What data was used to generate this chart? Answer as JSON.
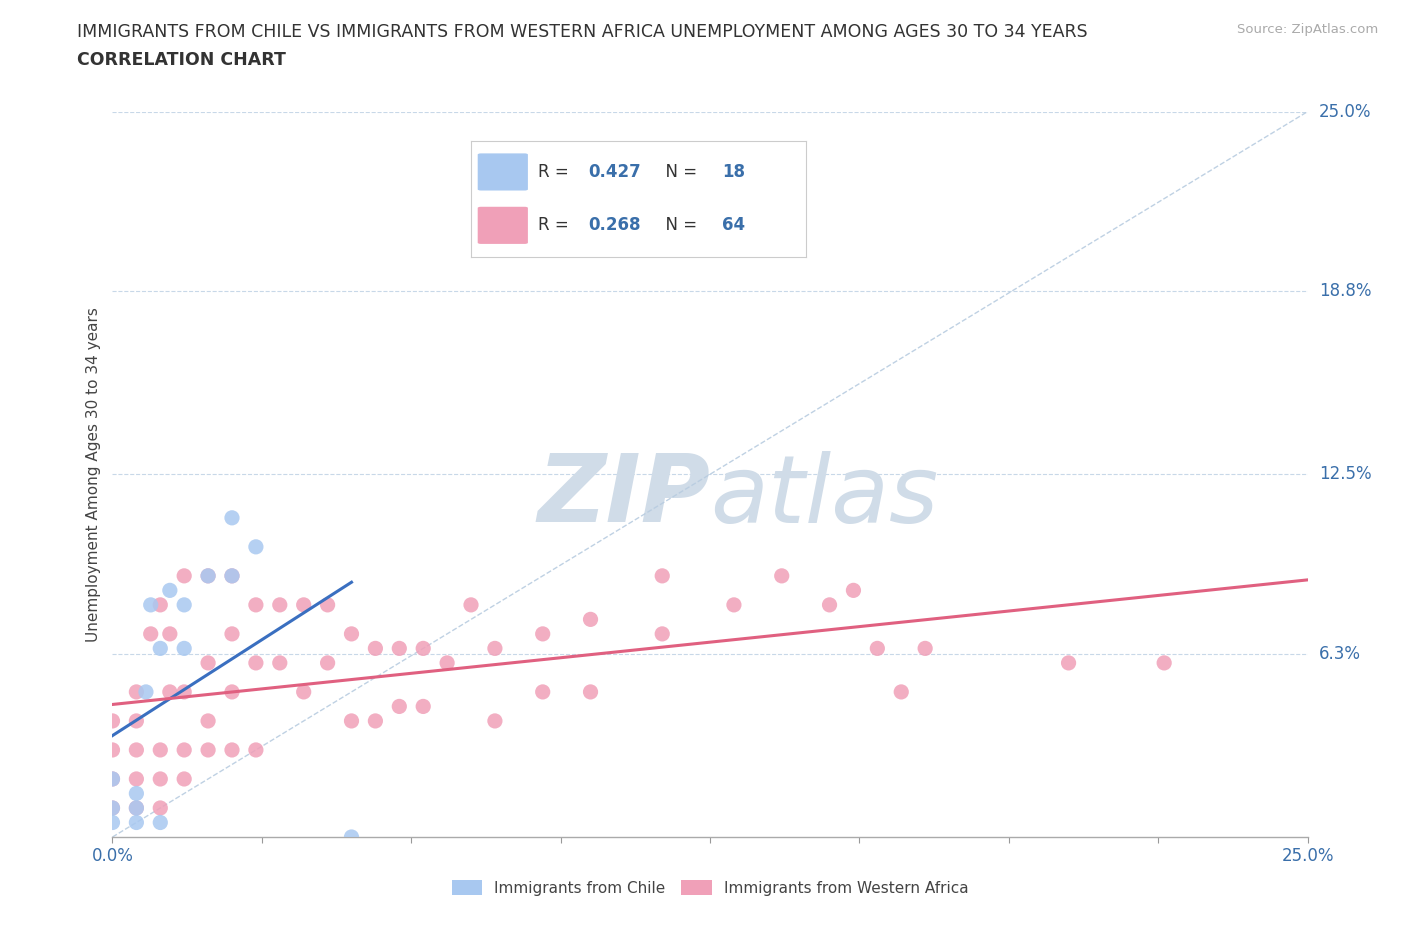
{
  "title_line1": "IMMIGRANTS FROM CHILE VS IMMIGRANTS FROM WESTERN AFRICA UNEMPLOYMENT AMONG AGES 30 TO 34 YEARS",
  "title_line2": "CORRELATION CHART",
  "source": "Source: ZipAtlas.com",
  "ylabel": "Unemployment Among Ages 30 to 34 years",
  "xlim": [
    0.0,
    0.25
  ],
  "ylim": [
    0.0,
    0.25
  ],
  "ytick_labels": [
    "6.3%",
    "12.5%",
    "18.8%",
    "25.0%"
  ],
  "ytick_values": [
    0.063,
    0.125,
    0.188,
    0.25
  ],
  "xtick_values": [
    0.0,
    0.03125,
    0.0625,
    0.09375,
    0.125,
    0.15625,
    0.1875,
    0.21875,
    0.25
  ],
  "chile_color": "#a8c8f0",
  "chile_line_color": "#3a6fc0",
  "wa_color": "#f0a0b8",
  "wa_line_color": "#e06080",
  "diagonal_color": "#b8cce0",
  "R_chile": 0.427,
  "N_chile": 18,
  "R_wa": 0.268,
  "N_wa": 64,
  "background_color": "#ffffff",
  "grid_color": "#c8d8e8",
  "watermark_color": "#d0dce8",
  "chile_x": [
    0.0,
    0.0,
    0.0,
    0.005,
    0.005,
    0.005,
    0.007,
    0.008,
    0.01,
    0.01,
    0.012,
    0.015,
    0.015,
    0.02,
    0.025,
    0.025,
    0.03,
    0.05
  ],
  "chile_y": [
    0.005,
    0.01,
    0.02,
    0.005,
    0.01,
    0.015,
    0.05,
    0.08,
    0.005,
    0.065,
    0.085,
    0.065,
    0.08,
    0.09,
    0.09,
    0.11,
    0.1,
    0.0
  ],
  "wa_x": [
    0.0,
    0.0,
    0.0,
    0.0,
    0.005,
    0.005,
    0.005,
    0.005,
    0.005,
    0.008,
    0.01,
    0.01,
    0.01,
    0.01,
    0.012,
    0.012,
    0.015,
    0.015,
    0.015,
    0.015,
    0.02,
    0.02,
    0.02,
    0.02,
    0.025,
    0.025,
    0.025,
    0.025,
    0.03,
    0.03,
    0.03,
    0.035,
    0.035,
    0.04,
    0.04,
    0.045,
    0.045,
    0.05,
    0.05,
    0.055,
    0.055,
    0.06,
    0.06,
    0.065,
    0.065,
    0.07,
    0.075,
    0.08,
    0.08,
    0.09,
    0.09,
    0.1,
    0.1,
    0.115,
    0.115,
    0.13,
    0.14,
    0.15,
    0.155,
    0.16,
    0.165,
    0.17,
    0.2,
    0.22
  ],
  "wa_y": [
    0.01,
    0.02,
    0.03,
    0.04,
    0.01,
    0.02,
    0.03,
    0.04,
    0.05,
    0.07,
    0.01,
    0.02,
    0.03,
    0.08,
    0.05,
    0.07,
    0.02,
    0.03,
    0.05,
    0.09,
    0.03,
    0.04,
    0.06,
    0.09,
    0.03,
    0.05,
    0.07,
    0.09,
    0.03,
    0.06,
    0.08,
    0.06,
    0.08,
    0.05,
    0.08,
    0.06,
    0.08,
    0.04,
    0.07,
    0.04,
    0.065,
    0.045,
    0.065,
    0.045,
    0.065,
    0.06,
    0.08,
    0.04,
    0.065,
    0.05,
    0.07,
    0.05,
    0.075,
    0.07,
    0.09,
    0.08,
    0.09,
    0.08,
    0.085,
    0.065,
    0.05,
    0.065,
    0.06,
    0.06
  ]
}
